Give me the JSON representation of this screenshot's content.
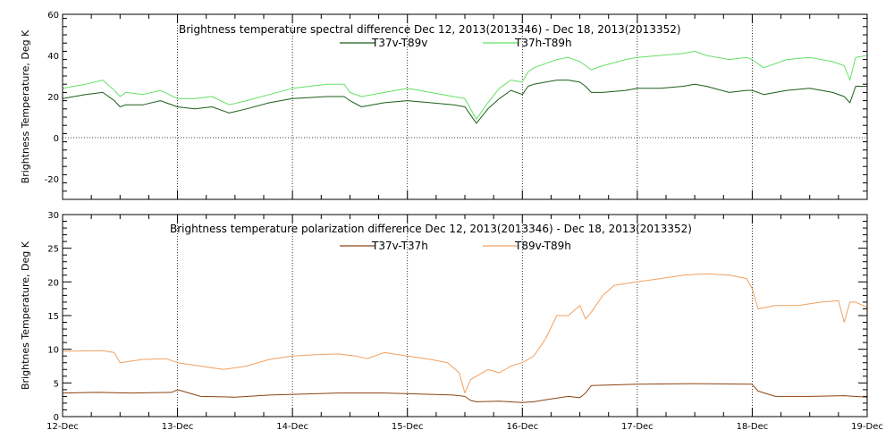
{
  "chart_data": [
    {
      "type": "line",
      "title": "Brightness temperature spectral difference      Dec 12, 2013(2013346) - Dec 18, 2013(2013352)",
      "ylabel": "Brightness Temperature, Deg K",
      "xlabel": "",
      "x_ticks": [
        "12-Dec",
        "13-Dec",
        "14-Dec",
        "15-Dec",
        "16-Dec",
        "17-Dec",
        "18-Dec",
        "19-Dec"
      ],
      "xlim": [
        0,
        7
      ],
      "ylim": [
        -30,
        60
      ],
      "y_ticks": [
        -20,
        0,
        20,
        40,
        60
      ],
      "grid": "dotted vertical lines at each day and horizontal at 0",
      "legend_position": "top-center",
      "series": [
        {
          "name": "T37v-T89v",
          "color": "#1a5e1a",
          "x": [
            0,
            0.2,
            0.35,
            0.45,
            0.5,
            0.55,
            0.7,
            0.85,
            1.0,
            1.15,
            1.3,
            1.45,
            1.6,
            1.8,
            2.0,
            2.3,
            2.45,
            2.5,
            2.6,
            2.8,
            3.0,
            3.2,
            3.4,
            3.5,
            3.55,
            3.6,
            3.7,
            3.8,
            3.9,
            4.0,
            4.05,
            4.1,
            4.2,
            4.3,
            4.4,
            4.5,
            4.55,
            4.6,
            4.7,
            4.9,
            5.0,
            5.2,
            5.4,
            5.5,
            5.6,
            5.8,
            5.95,
            6.0,
            6.1,
            6.3,
            6.5,
            6.7,
            6.8,
            6.85,
            6.9,
            7.0
          ],
          "values": [
            19,
            21,
            22,
            18,
            15,
            16,
            16,
            18,
            15,
            14,
            15,
            12,
            14,
            17,
            19,
            20,
            20,
            18,
            15,
            17,
            18,
            17,
            16,
            15,
            11,
            7,
            14,
            19,
            23,
            21,
            25,
            26,
            27,
            28,
            28,
            27,
            25,
            22,
            22,
            23,
            24,
            24,
            25,
            26,
            25,
            22,
            23,
            23,
            21,
            23,
            24,
            22,
            20,
            17,
            25,
            25
          ]
        },
        {
          "name": "T37h-T89h",
          "color": "#66e066",
          "x": [
            0,
            0.2,
            0.35,
            0.45,
            0.5,
            0.55,
            0.7,
            0.85,
            1.0,
            1.15,
            1.3,
            1.45,
            1.6,
            1.8,
            2.0,
            2.3,
            2.45,
            2.5,
            2.6,
            2.8,
            3.0,
            3.2,
            3.4,
            3.5,
            3.55,
            3.6,
            3.7,
            3.8,
            3.9,
            4.0,
            4.05,
            4.1,
            4.2,
            4.3,
            4.4,
            4.5,
            4.55,
            4.6,
            4.7,
            4.9,
            5.0,
            5.2,
            5.4,
            5.5,
            5.6,
            5.8,
            5.95,
            6.0,
            6.1,
            6.3,
            6.5,
            6.7,
            6.8,
            6.85,
            6.9,
            7.0
          ],
          "values": [
            24,
            26,
            28,
            23,
            20,
            22,
            21,
            23,
            19,
            19,
            20,
            16,
            18,
            21,
            24,
            26,
            26,
            22,
            20,
            22,
            24,
            22,
            20,
            19,
            14,
            9,
            17,
            24,
            28,
            27,
            32,
            34,
            36,
            38,
            39,
            37,
            35,
            33,
            35,
            38,
            39,
            40,
            41,
            42,
            40,
            38,
            39,
            38,
            34,
            38,
            39,
            37,
            35,
            28,
            39,
            40
          ]
        }
      ]
    },
    {
      "type": "line",
      "title": "Brightness temperature polarization difference      Dec 12, 2013(2013346) - Dec 18, 2013(2013352)",
      "ylabel": "Brightnes Temperature, Deg K",
      "xlabel": "",
      "x_ticks": [
        "12-Dec",
        "13-Dec",
        "14-Dec",
        "15-Dec",
        "16-Dec",
        "17-Dec",
        "18-Dec",
        "19-Dec"
      ],
      "xlim": [
        0,
        7
      ],
      "ylim": [
        0,
        30
      ],
      "y_ticks": [
        0,
        5,
        10,
        15,
        20,
        25,
        30
      ],
      "grid": "dotted vertical lines at each day and horizontal at 0",
      "legend_position": "top-center",
      "series": [
        {
          "name": "T37v-T37h",
          "color": "#8b4513",
          "x": [
            0,
            0.3,
            0.6,
            0.95,
            1.0,
            1.2,
            1.5,
            1.8,
            2.0,
            2.4,
            2.8,
            3.2,
            3.4,
            3.5,
            3.55,
            3.6,
            3.8,
            4.0,
            4.1,
            4.2,
            4.4,
            4.5,
            4.55,
            4.6,
            5.0,
            5.5,
            6.0,
            6.05,
            6.2,
            6.5,
            6.8,
            7.0
          ],
          "values": [
            3.5,
            3.6,
            3.5,
            3.6,
            4.0,
            3.0,
            2.9,
            3.2,
            3.3,
            3.5,
            3.5,
            3.3,
            3.2,
            3.0,
            2.4,
            2.2,
            2.3,
            2.1,
            2.2,
            2.5,
            3.0,
            2.8,
            3.5,
            4.6,
            4.8,
            4.9,
            4.8,
            3.8,
            3.0,
            3.0,
            3.1,
            2.9
          ]
        },
        {
          "name": "T89v-T89h",
          "color": "#f0a060",
          "x": [
            0,
            0.35,
            0.45,
            0.5,
            0.7,
            0.9,
            1.0,
            1.2,
            1.4,
            1.6,
            1.8,
            2.0,
            2.2,
            2.4,
            2.55,
            2.65,
            2.8,
            3.0,
            3.2,
            3.35,
            3.45,
            3.5,
            3.55,
            3.6,
            3.7,
            3.8,
            3.9,
            4.0,
            4.1,
            4.2,
            4.3,
            4.4,
            4.5,
            4.55,
            4.6,
            4.7,
            4.8,
            5.0,
            5.2,
            5.4,
            5.6,
            5.8,
            5.95,
            6.0,
            6.05,
            6.2,
            6.4,
            6.6,
            6.75,
            6.8,
            6.85,
            6.9,
            7.0
          ],
          "values": [
            9.7,
            9.8,
            9.5,
            8.0,
            8.5,
            8.6,
            8.0,
            7.5,
            7.0,
            7.5,
            8.5,
            9.0,
            9.2,
            9.3,
            9.0,
            8.6,
            9.5,
            9.0,
            8.5,
            8.0,
            6.5,
            3.5,
            5.5,
            6.0,
            7.0,
            6.5,
            7.5,
            8.0,
            9.0,
            11.5,
            15.0,
            15.0,
            16.5,
            14.5,
            15.5,
            18.0,
            19.5,
            20.0,
            20.5,
            21.0,
            21.2,
            21.0,
            20.5,
            19.0,
            16.0,
            16.5,
            16.5,
            17.0,
            17.2,
            14.0,
            17.0,
            17.0,
            16.2
          ]
        }
      ]
    }
  ]
}
